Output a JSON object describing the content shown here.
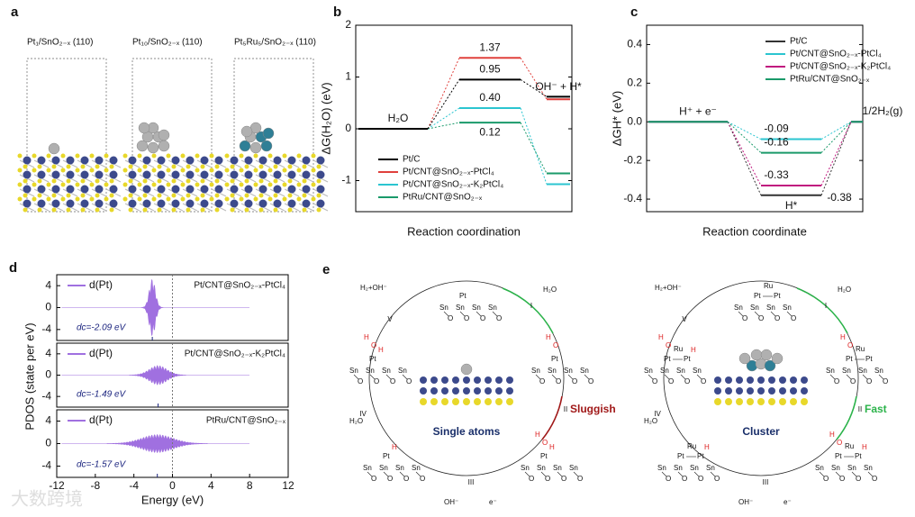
{
  "panel_a": {
    "label": "a",
    "titles": [
      "Pt₁/SnO₂₋ₓ (110)",
      "Pt₁₀/SnO₂₋ₓ (110)",
      "Pt₅Ru₅/SnO₂₋ₓ (110)"
    ]
  },
  "chart_b": {
    "type": "energy_diagram",
    "label": "b",
    "ylabel": "ΔG(H₂O) (eV)",
    "xlabel": "Reaction coordination",
    "ylim": [
      -1.6,
      2
    ],
    "yticks": [
      -1,
      0,
      1,
      2
    ],
    "initial_label": "H₂O",
    "final_label": "OH⁻ + H*",
    "series": [
      {
        "name": "Pt/CNT@SnO₂₋ₓ-PtCl₄",
        "color": "#e0403c",
        "values": [
          0,
          1.37,
          0.57
        ],
        "value_label": "1.37"
      },
      {
        "name": "Pt/CNT@SnO₂₋ₓ-K₂PtCl₄",
        "color": "#2bc5d0",
        "values": [
          0,
          0.4,
          -1.07
        ],
        "value_label": "0.40"
      },
      {
        "name": "PtRu/CNT@SnO₂₋ₓ",
        "color": "#1a9a6a",
        "values": [
          0,
          0.12,
          -0.86
        ],
        "value_label": "0.12"
      },
      {
        "name": "Pt/C",
        "color": "#000000",
        "values": [
          0,
          0.95,
          0.62
        ],
        "value_label": "0.95"
      }
    ]
  },
  "chart_c": {
    "type": "energy_diagram",
    "label": "c",
    "ylabel": "ΔGH* (eV)",
    "xlabel": "Reaction coordinate",
    "ylim": [
      -0.465,
      0.5
    ],
    "yticks": [
      -0.4,
      -0.2,
      {
        "value": 0,
        "label": "0.0"
      },
      0.2,
      0.4
    ],
    "initial_label": "H⁺ + e⁻",
    "final_label": "1/2H₂(g)",
    "intermediate_label": "H*",
    "series": [
      {
        "name": "Pt/C",
        "color": "#333333",
        "values": [
          0,
          -0.38,
          0
        ],
        "value_label": "-0.38"
      },
      {
        "name": "Pt/CNT@SnO₂₋ₓ-PtCl₄",
        "color": "#2bc5d0",
        "values": [
          0,
          -0.09,
          0
        ],
        "value_label": "-0.09"
      },
      {
        "name": "Pt/CNT@SnO₂₋ₓ-K₂PtCl₄",
        "color": "#c0187f",
        "values": [
          0,
          -0.33,
          0
        ],
        "value_label": "-0.33"
      },
      {
        "name": "PtRu/CNT@SnO₂₋ₓ",
        "color": "#1a9a6a",
        "values": [
          0,
          -0.16,
          0
        ],
        "value_label": "-0.16"
      }
    ]
  },
  "chart_d": {
    "type": "pdos",
    "label": "d",
    "ylabel": "PDOS (state per eV)",
    "xlabel": "Energy (eV)",
    "xlim": [
      -12,
      12
    ],
    "xticks": [
      -12,
      -8,
      -4,
      0,
      4,
      8,
      12
    ],
    "ylim": [
      -6,
      6
    ],
    "yticks": [
      -4,
      0,
      4
    ],
    "color": "#a070e0",
    "legend": "d(Pt)",
    "panels": [
      {
        "name": "Pt/CNT@SnO₂₋ₓ-PtCl₄",
        "d_center": {
          "value": -2.09,
          "label": "dc=-2.09 eV"
        }
      },
      {
        "name": "Pt/CNT@SnO₂₋ₓ-K₂PtCl₄",
        "d_center": {
          "value": -1.49,
          "label": "dc=-1.49 eV"
        }
      },
      {
        "name": "PtRu/CNT@SnO₂₋ₓ",
        "d_center": {
          "value": -1.57,
          "label": "dc=-1.57 eV"
        }
      }
    ]
  },
  "panel_e": {
    "label": "e",
    "atoms": {
      "sn": "Sn",
      "o": "O",
      "pt": "Pt",
      "ru": "Ru",
      "h": "H"
    },
    "cycles": [
      {
        "title": "Single atoms",
        "rate": "Sluggish",
        "steps": [
          "I",
          "II",
          "III",
          "IV",
          "V"
        ],
        "h2o": "H₂O",
        "h2_out": "H₂+OH⁻",
        "oh": "OH⁻",
        "e": "e⁻"
      },
      {
        "title": "Cluster",
        "rate": "Fast",
        "steps": [
          "I",
          "II",
          "III",
          "IV",
          "V"
        ],
        "h2o": "H₂O",
        "h2_out": "H₂+OH⁻",
        "oh": "OH⁻",
        "e": "e⁻"
      }
    ]
  },
  "watermark": "大数跨境"
}
